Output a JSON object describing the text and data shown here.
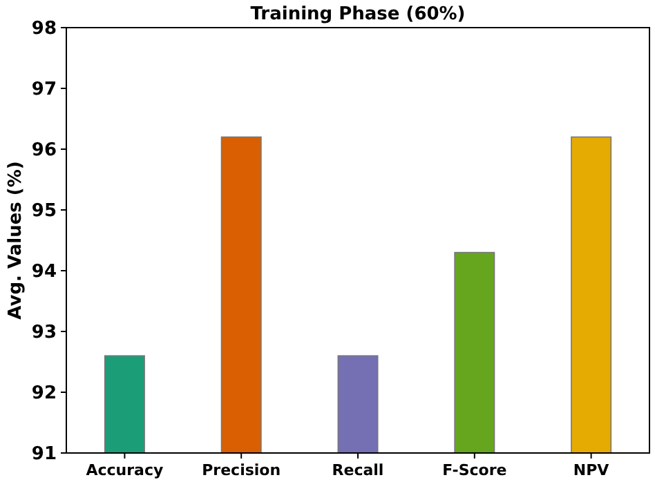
{
  "chart_data": {
    "type": "bar",
    "title": "Training Phase (60%)",
    "ylabel": "Avg. Values (%)",
    "categories": [
      "Accuracy",
      "Precision",
      "Recall",
      "F-Score",
      "NPV"
    ],
    "values": [
      92.6,
      96.2,
      92.6,
      94.3,
      96.2
    ],
    "colors": [
      "#1b9e77",
      "#d95f02",
      "#7570b3",
      "#66a61e",
      "#e6ab02"
    ],
    "ylim": [
      91,
      98
    ],
    "yticks": [
      91,
      92,
      93,
      94,
      95,
      96,
      97,
      98
    ]
  }
}
